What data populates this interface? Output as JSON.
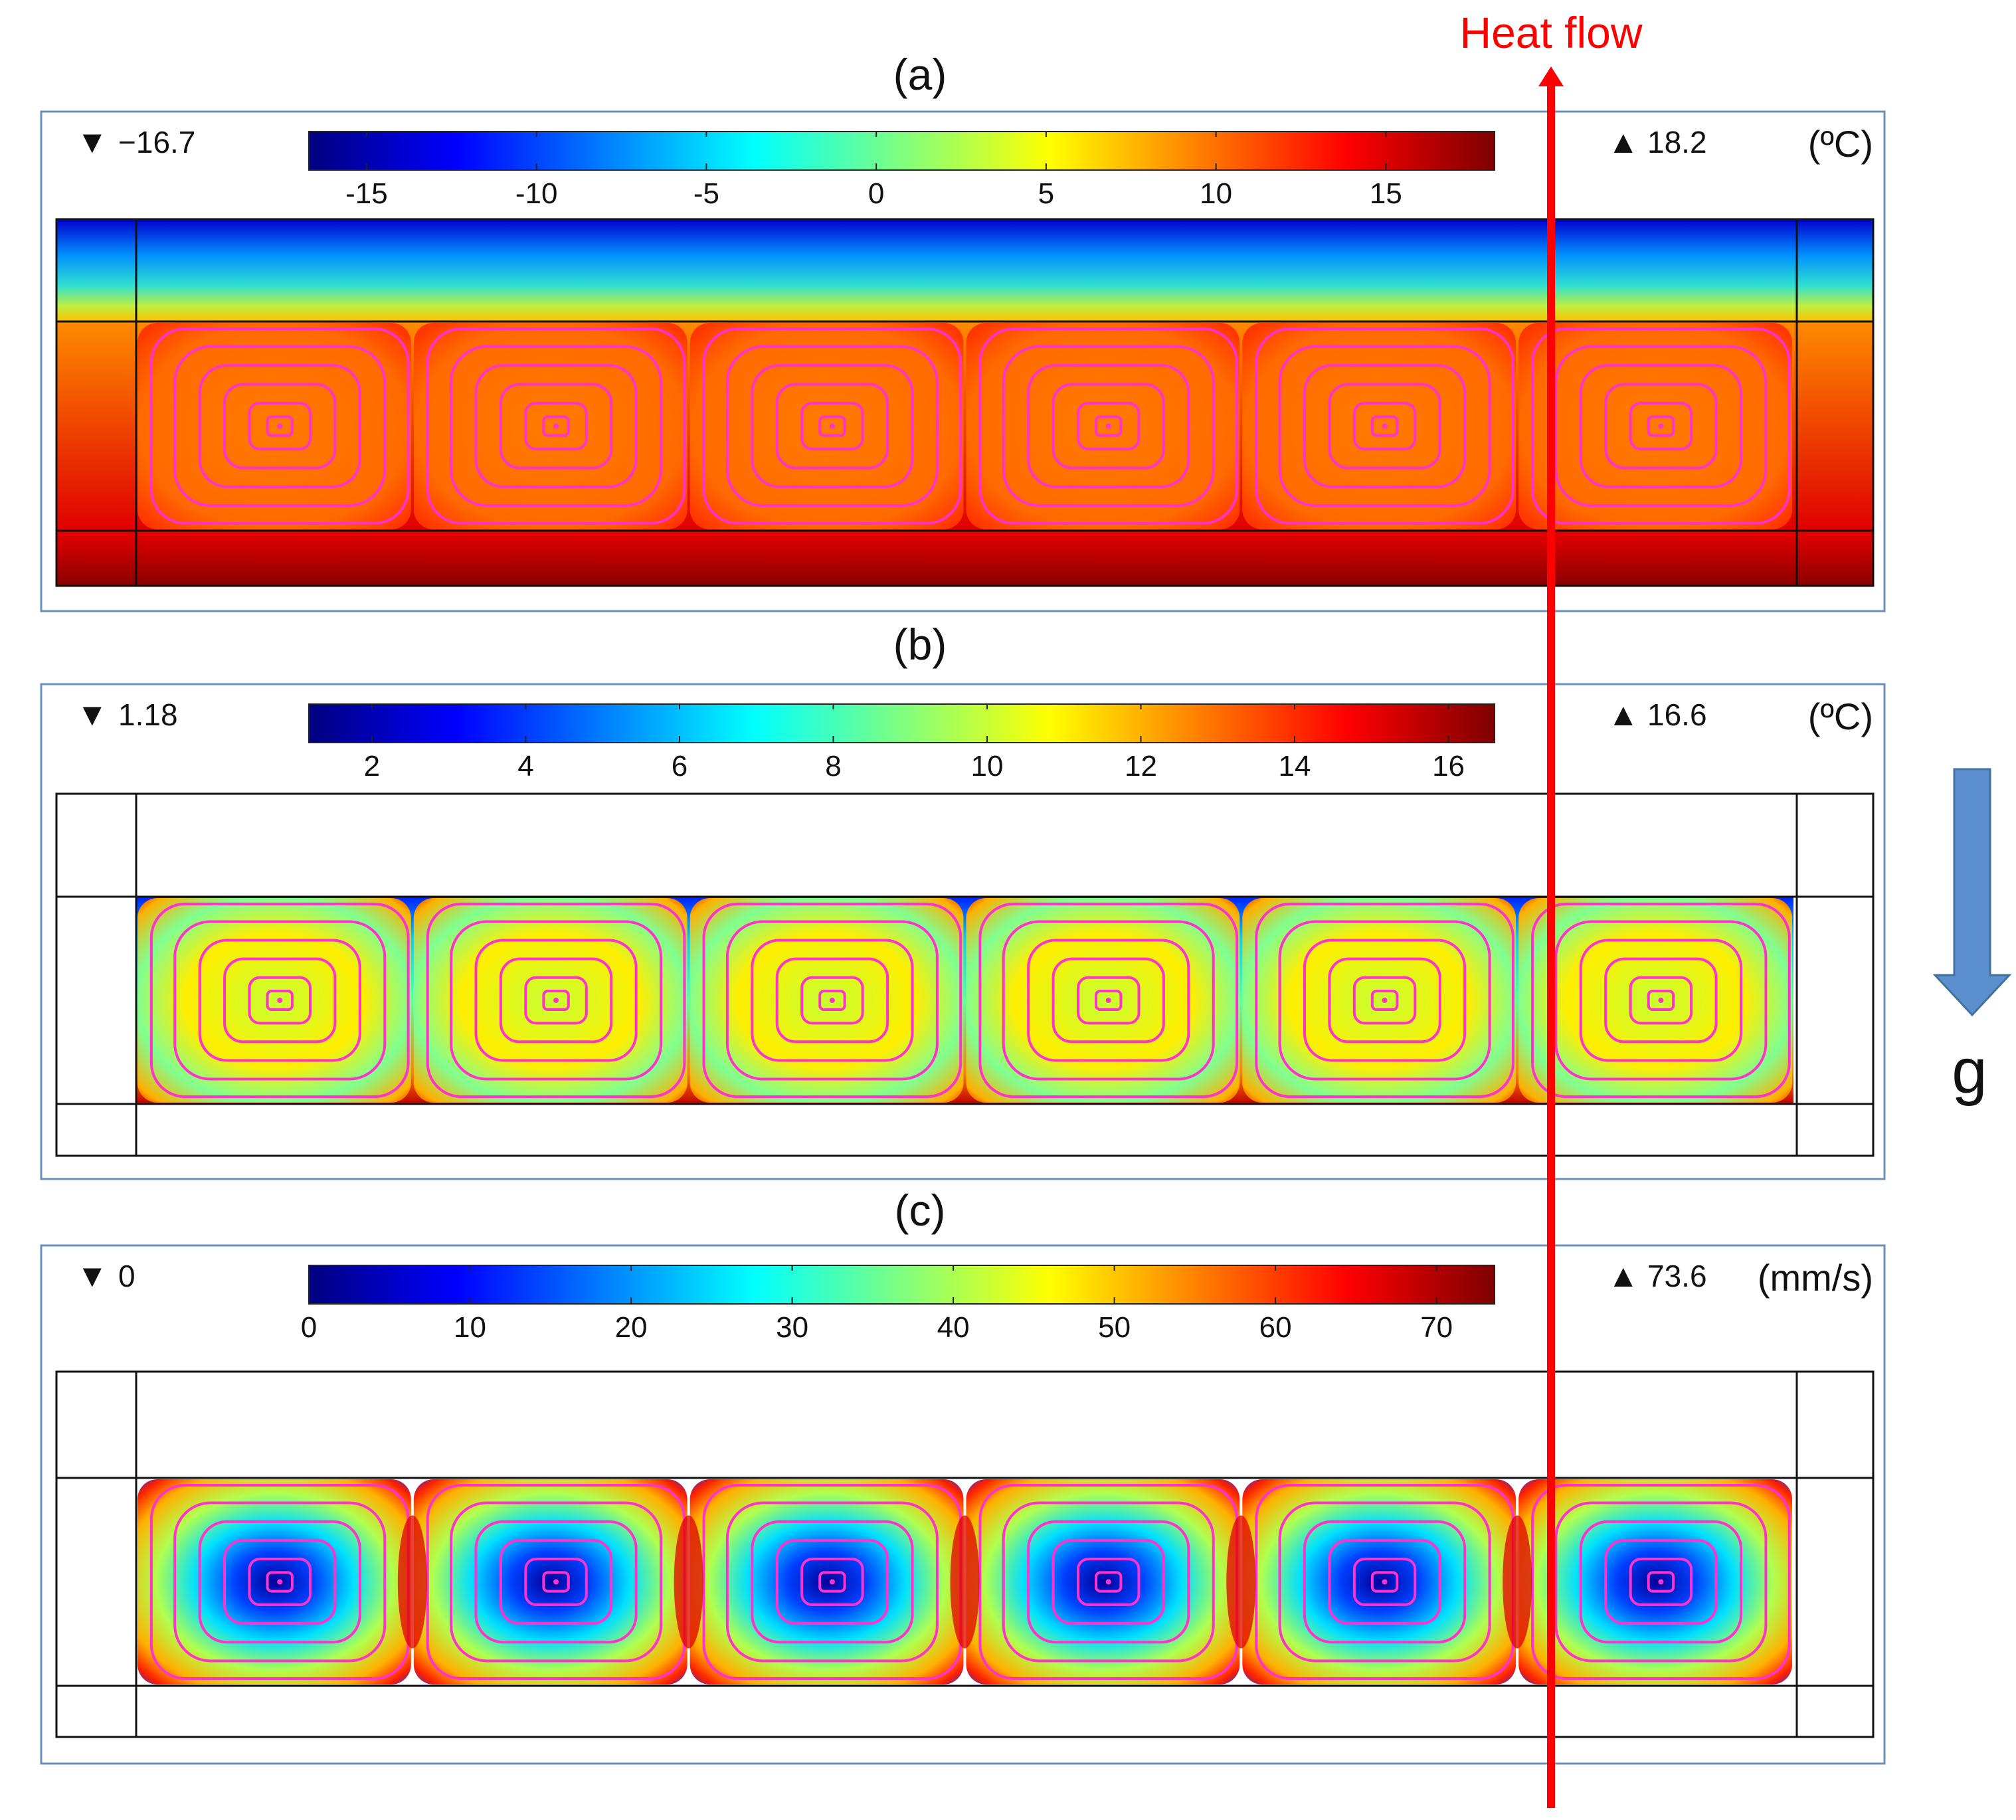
{
  "annotation": {
    "heat_flow_label": "Heat flow",
    "gravity_label": "g",
    "heat_flow_color": "#ff0000",
    "gravity_arrow_color": "#5b8fce"
  },
  "colormap": [
    "#00007f",
    "#0000ff",
    "#007fff",
    "#00ffff",
    "#7fff7f",
    "#ffff00",
    "#ff7f00",
    "#ff0000",
    "#7f0000"
  ],
  "streamline_color": "#ff33cc",
  "panels": [
    {
      "label": "(a)",
      "min_marker": "▼",
      "min_text": "−16.7",
      "max_marker": "▲",
      "max_text": "18.2",
      "unit": "(ºC)",
      "range": [
        -16.7,
        18.2
      ],
      "ticks": [
        "-15",
        "-10",
        "-5",
        "0",
        "5",
        "10",
        "15"
      ],
      "tick_values": [
        -15,
        -10,
        -5,
        0,
        5,
        10,
        15
      ],
      "field": "full-temperature"
    },
    {
      "label": "(b)",
      "min_marker": "▼",
      "min_text": "1.18",
      "max_marker": "▲",
      "max_text": "16.6",
      "unit": "(ºC)",
      "range": [
        1.18,
        16.6
      ],
      "ticks": [
        "2",
        "4",
        "6",
        "8",
        "10",
        "12",
        "14",
        "16"
      ],
      "tick_values": [
        2,
        4,
        6,
        8,
        10,
        12,
        14,
        16
      ],
      "field": "fluid-temperature"
    },
    {
      "label": "(c)",
      "min_marker": "▼",
      "min_text": "0",
      "max_marker": "▲",
      "max_text": "73.6",
      "unit": "(mm/s)",
      "range": [
        0,
        73.6
      ],
      "ticks": [
        "0",
        "10",
        "20",
        "30",
        "40",
        "50",
        "60",
        "70"
      ],
      "tick_values": [
        0,
        10,
        20,
        30,
        40,
        50,
        60,
        70
      ],
      "field": "velocity-magnitude"
    }
  ]
}
